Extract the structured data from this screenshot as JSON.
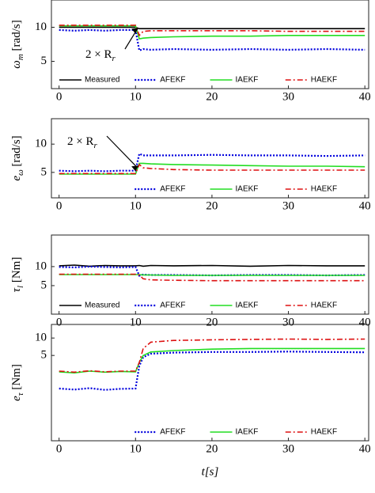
{
  "chart_data": [
    {
      "type": "line",
      "ylabel": "ω",
      "ylabel_sub": "m",
      "ylabel_unit": " [rad/s]",
      "annotation": "2 × R",
      "annotation_sub": "r",
      "x": [
        0,
        2,
        4,
        6,
        8,
        10,
        10.5,
        11,
        12,
        15,
        20,
        25,
        30,
        35,
        40
      ],
      "xlim": [
        -1,
        40.5
      ],
      "xticks": [
        0,
        10,
        20,
        30,
        40
      ],
      "ylim": [
        1,
        14
      ],
      "yticks": [
        5,
        10
      ],
      "series": [
        {
          "name": "Measured",
          "color": "#000000",
          "values": [
            10,
            10,
            10,
            10,
            10,
            10,
            9.8,
            9.8,
            9.8,
            9.8,
            9.8,
            9.8,
            9.8,
            9.8,
            9.8
          ]
        },
        {
          "name": "AFEKF",
          "color": "#0000dd",
          "values": [
            9.6,
            9.5,
            9.6,
            9.5,
            9.6,
            9.6,
            6.6,
            6.8,
            6.7,
            6.8,
            6.7,
            6.8,
            6.7,
            6.8,
            6.7
          ]
        },
        {
          "name": "IAEKF",
          "color": "#22dd22",
          "values": [
            10.2,
            10.2,
            10.2,
            10.2,
            10.2,
            10.2,
            8.3,
            8.4,
            8.5,
            8.6,
            8.7,
            8.7,
            8.8,
            8.8,
            8.8
          ]
        },
        {
          "name": "HAEKF",
          "color": "#dd1111",
          "values": [
            10.3,
            10.3,
            10.3,
            10.3,
            10.3,
            10.3,
            8.8,
            9.4,
            9.5,
            9.5,
            9.5,
            9.5,
            9.4,
            9.4,
            9.4
          ]
        }
      ]
    },
    {
      "type": "line",
      "ylabel": "e",
      "ylabel_sub": "ω",
      "ylabel_unit": " [rad/s]",
      "annotation": "2 × R",
      "annotation_sub": "r",
      "x": [
        0,
        2,
        4,
        6,
        8,
        10,
        10.5,
        11,
        12,
        15,
        20,
        25,
        30,
        35,
        40
      ],
      "xlim": [
        -1,
        40.5
      ],
      "xticks": [
        0,
        10,
        20,
        30,
        40
      ],
      "ylim": [
        0.5,
        14.5
      ],
      "yticks": [
        5,
        10
      ],
      "series": [
        {
          "name": "AFEKF",
          "color": "#0000dd",
          "values": [
            5.3,
            5.2,
            5.3,
            5.2,
            5.3,
            5.3,
            8.3,
            8,
            8,
            8,
            8.1,
            8,
            8,
            7.9,
            8
          ]
        },
        {
          "name": "IAEKF",
          "color": "#22dd22",
          "values": [
            4.7,
            4.7,
            4.7,
            4.7,
            4.7,
            4.7,
            6.6,
            6.6,
            6.5,
            6.4,
            6.3,
            6.2,
            6.1,
            6.1,
            6
          ]
        },
        {
          "name": "HAEKF",
          "color": "#dd1111",
          "values": [
            4.8,
            4.8,
            4.8,
            4.8,
            4.8,
            4.8,
            6.4,
            5.8,
            5.7,
            5.5,
            5.4,
            5.4,
            5.4,
            5.4,
            5.4
          ]
        }
      ]
    },
    {
      "type": "line",
      "ylabel": "τ",
      "ylabel_sub": "l",
      "ylabel_unit": " [Nm]",
      "x": [
        0,
        2,
        4,
        6,
        8,
        10,
        10.5,
        11,
        12,
        15,
        20,
        25,
        30,
        35,
        40
      ],
      "xlim": [
        -1,
        40.5
      ],
      "xticks": [
        0,
        10,
        20,
        30,
        40
      ],
      "ylim": [
        -2.5,
        18.3
      ],
      "yticks": [
        5,
        10
      ],
      "series": [
        {
          "name": "Measured",
          "color": "#000000",
          "values": [
            10.2,
            10.4,
            10.1,
            10.3,
            10.2,
            10.2,
            10.3,
            10.1,
            10.3,
            10.2,
            10.3,
            10.1,
            10.3,
            10.2,
            10.2
          ]
        },
        {
          "name": "AFEKF",
          "color": "#0000dd",
          "values": [
            9.9,
            9.8,
            10,
            9.9,
            9.8,
            9.9,
            7.6,
            7.9,
            7.8,
            7.8,
            7.7,
            7.8,
            7.8,
            7.7,
            7.8
          ]
        },
        {
          "name": "IAEKF",
          "color": "#22dd22",
          "values": [
            7.9,
            7.9,
            7.9,
            7.9,
            7.9,
            7.9,
            7.9,
            7.8,
            7.8,
            7.7,
            7.7,
            7.7,
            7.7,
            7.7,
            7.7
          ]
        },
        {
          "name": "HAEKF",
          "color": "#dd1111",
          "values": [
            8,
            8,
            8,
            8,
            8,
            8,
            7.8,
            6.8,
            6.5,
            6.4,
            6.3,
            6.3,
            6.3,
            6.3,
            6.3
          ]
        }
      ]
    },
    {
      "type": "line",
      "ylabel": "e",
      "ylabel_sub": "τ",
      "ylabel_unit": " [Nm]",
      "xlabel": "t[s]",
      "x": [
        0,
        2,
        4,
        6,
        8,
        10,
        10.5,
        11,
        12,
        15,
        20,
        25,
        30,
        35,
        40
      ],
      "xlim": [
        -1,
        40.5
      ],
      "xticks": [
        0,
        10,
        20,
        30,
        40
      ],
      "ylim": [
        -19.5,
        13.9
      ],
      "yticks": [
        5,
        10
      ],
      "series": [
        {
          "name": "AFEKF",
          "color": "#0000dd",
          "values": [
            -4.5,
            -4.8,
            -4.4,
            -4.9,
            -4.6,
            -4.5,
            2,
            4.5,
            5.5,
            5.8,
            6,
            6,
            6.1,
            6,
            5.9
          ]
        },
        {
          "name": "IAEKF",
          "color": "#22dd22",
          "values": [
            0.3,
            0,
            0.5,
            0.2,
            0.4,
            0.3,
            3,
            5,
            6,
            6.4,
            6.8,
            7,
            7,
            7,
            7
          ]
        },
        {
          "name": "HAEKF",
          "color": "#dd1111",
          "values": [
            0.5,
            0.2,
            0.6,
            0.3,
            0.5,
            0.5,
            3,
            7,
            8.8,
            9.3,
            9.5,
            9.6,
            9.7,
            9.6,
            9.7
          ]
        }
      ]
    }
  ]
}
